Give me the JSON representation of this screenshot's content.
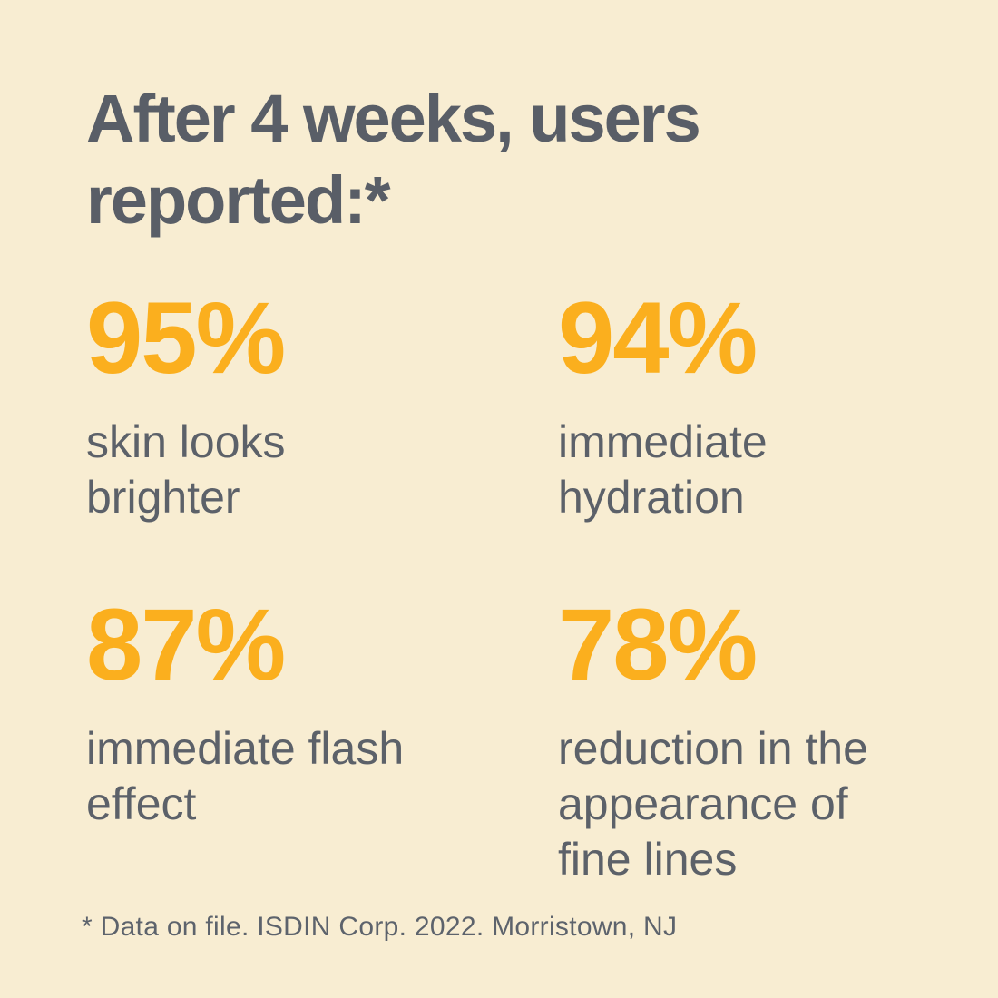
{
  "page": {
    "background_color": "#F8EDD2",
    "accent_color": "#FBAF1E",
    "heading_color": "#595E67",
    "label_color": "#5C6169"
  },
  "title": "After 4 weeks, users\nreported:*",
  "stats": [
    {
      "value": "95%",
      "label": "skin looks\nbrighter"
    },
    {
      "value": "94%",
      "label": "immediate\nhydration"
    },
    {
      "value": "87%",
      "label": "immediate flash\neffect"
    },
    {
      "value": "78%",
      "label": "reduction in the\nappearance of\nfine lines"
    }
  ],
  "footnote": "* Data on file. ISDIN Corp. 2022. Morristown, NJ"
}
